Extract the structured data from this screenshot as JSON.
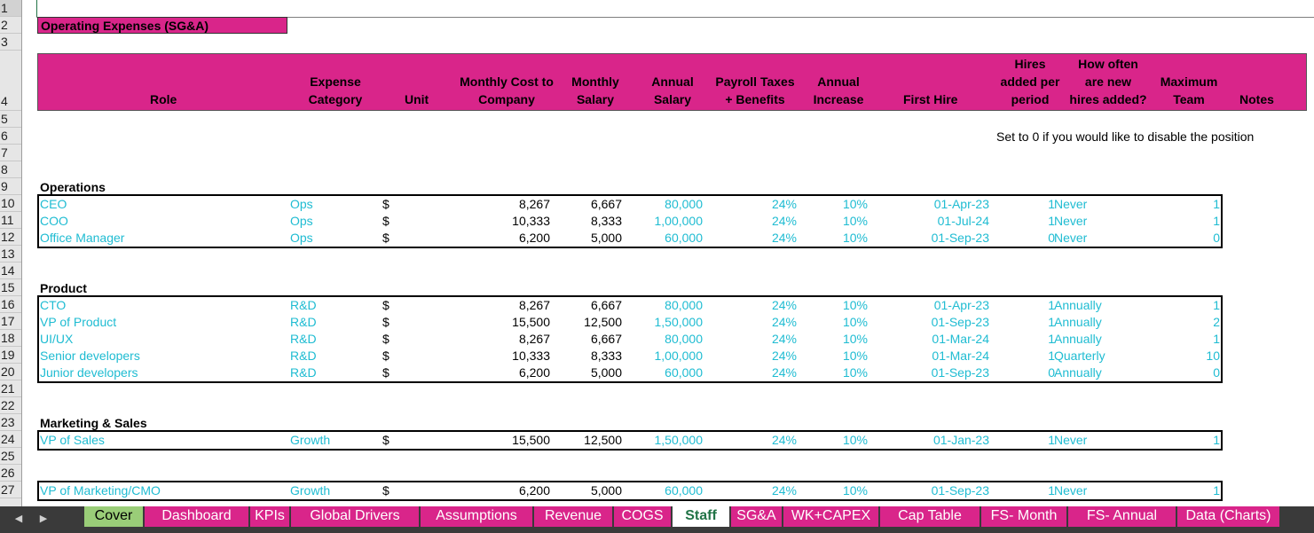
{
  "sheet_title": "Operating Expenses (SG&A)",
  "headers": {
    "role": "Role",
    "expense_category": [
      "Expense",
      "Category"
    ],
    "unit": "Unit",
    "monthly_cost": [
      "Monthly Cost to",
      "Company"
    ],
    "monthly_salary": [
      "Monthly",
      "Salary"
    ],
    "annual_salary": [
      "Annual",
      "Salary"
    ],
    "payroll_taxes": [
      "Payroll Taxes",
      "+ Benefits"
    ],
    "annual_increase": [
      "Annual",
      "Increase"
    ],
    "first_hire": "First Hire",
    "hires_added": [
      "Hires",
      "added per",
      "period"
    ],
    "how_often": [
      "How often",
      "are new",
      "hires added?"
    ],
    "max_team": [
      "Maximum",
      "Team"
    ],
    "notes": "Notes"
  },
  "note_text": "Set to 0 if you would like to disable the position",
  "row_numbers": [
    "1",
    "2",
    "3",
    "4",
    "5",
    "6",
    "7",
    "8",
    "9",
    "10",
    "11",
    "12",
    "13",
    "14",
    "15",
    "16",
    "17",
    "18",
    "19",
    "20",
    "21",
    "22",
    "23",
    "24",
    "25",
    "26",
    "27"
  ],
  "sections": [
    {
      "name": "Operations",
      "rows": [
        {
          "role": "CEO",
          "category": "Ops",
          "unit": "$",
          "monthly_cost": "8,267",
          "monthly_salary": "6,667",
          "annual_salary": "80,000",
          "payroll": "24%",
          "increase": "10%",
          "first_hire": "01-Apr-23",
          "hires": "1",
          "frequency": "Never",
          "max_team": "1"
        },
        {
          "role": "COO",
          "category": "Ops",
          "unit": "$",
          "monthly_cost": "10,333",
          "monthly_salary": "8,333",
          "annual_salary": "1,00,000",
          "payroll": "24%",
          "increase": "10%",
          "first_hire": "01-Jul-24",
          "hires": "1",
          "frequency": "Never",
          "max_team": "1"
        },
        {
          "role": "Office Manager",
          "category": "Ops",
          "unit": "$",
          "monthly_cost": "6,200",
          "monthly_salary": "5,000",
          "annual_salary": "60,000",
          "payroll": "24%",
          "increase": "10%",
          "first_hire": "01-Sep-23",
          "hires": "0",
          "frequency": "Never",
          "max_team": "0"
        }
      ]
    },
    {
      "name": "Product",
      "rows": [
        {
          "role": "CTO",
          "category": "R&D",
          "unit": "$",
          "monthly_cost": "8,267",
          "monthly_salary": "6,667",
          "annual_salary": "80,000",
          "payroll": "24%",
          "increase": "10%",
          "first_hire": "01-Apr-23",
          "hires": "1",
          "frequency": "Annually",
          "max_team": "1"
        },
        {
          "role": "VP of Product",
          "category": "R&D",
          "unit": "$",
          "monthly_cost": "15,500",
          "monthly_salary": "12,500",
          "annual_salary": "1,50,000",
          "payroll": "24%",
          "increase": "10%",
          "first_hire": "01-Sep-23",
          "hires": "1",
          "frequency": "Annually",
          "max_team": "2"
        },
        {
          "role": "UI/UX",
          "category": "R&D",
          "unit": "$",
          "monthly_cost": "8,267",
          "monthly_salary": "6,667",
          "annual_salary": "80,000",
          "payroll": "24%",
          "increase": "10%",
          "first_hire": "01-Mar-24",
          "hires": "1",
          "frequency": "Annually",
          "max_team": "1"
        },
        {
          "role": "Senior developers",
          "category": "R&D",
          "unit": "$",
          "monthly_cost": "10,333",
          "monthly_salary": "8,333",
          "annual_salary": "1,00,000",
          "payroll": "24%",
          "increase": "10%",
          "first_hire": "01-Mar-24",
          "hires": "1",
          "frequency": "Quarterly",
          "max_team": "10"
        },
        {
          "role": "Junior developers",
          "category": "R&D",
          "unit": "$",
          "monthly_cost": "6,200",
          "monthly_salary": "5,000",
          "annual_salary": "60,000",
          "payroll": "24%",
          "increase": "10%",
          "first_hire": "01-Sep-23",
          "hires": "0",
          "frequency": "Annually",
          "max_team": "0"
        }
      ]
    },
    {
      "name": "Marketing & Sales",
      "rows": [
        {
          "role": "VP of Sales",
          "category": "Growth",
          "unit": "$",
          "monthly_cost": "15,500",
          "monthly_salary": "12,500",
          "annual_salary": "1,50,000",
          "payroll": "24%",
          "increase": "10%",
          "first_hire": "01-Jan-23",
          "hires": "1",
          "frequency": "Never",
          "max_team": "1"
        }
      ]
    },
    {
      "name": "",
      "rows": [
        {
          "role": "VP of Marketing/CMO",
          "category": "Growth",
          "unit": "$",
          "monthly_cost": "6,200",
          "monthly_salary": "5,000",
          "annual_salary": "60,000",
          "payroll": "24%",
          "increase": "10%",
          "first_hire": "01-Sep-23",
          "hires": "1",
          "frequency": "Never",
          "max_team": "1"
        }
      ]
    }
  ],
  "tabs": [
    "Cover",
    "Dashboard",
    "KPIs",
    "Global Drivers",
    "Assumptions",
    "Revenue",
    "COGS",
    "Staff",
    "SG&A",
    "WK+CAPEX",
    "Cap Table",
    "FS- Month",
    "FS- Annual",
    "Data (Charts)"
  ],
  "active_tab": "Staff",
  "nav_icons": {
    "prev": "◀",
    "next": "▶"
  },
  "colors": {
    "header_fill": "#d9258a",
    "input_text": "#1fbcd2",
    "cover_tab": "#9acd78",
    "active_tab_text": "#217346"
  }
}
